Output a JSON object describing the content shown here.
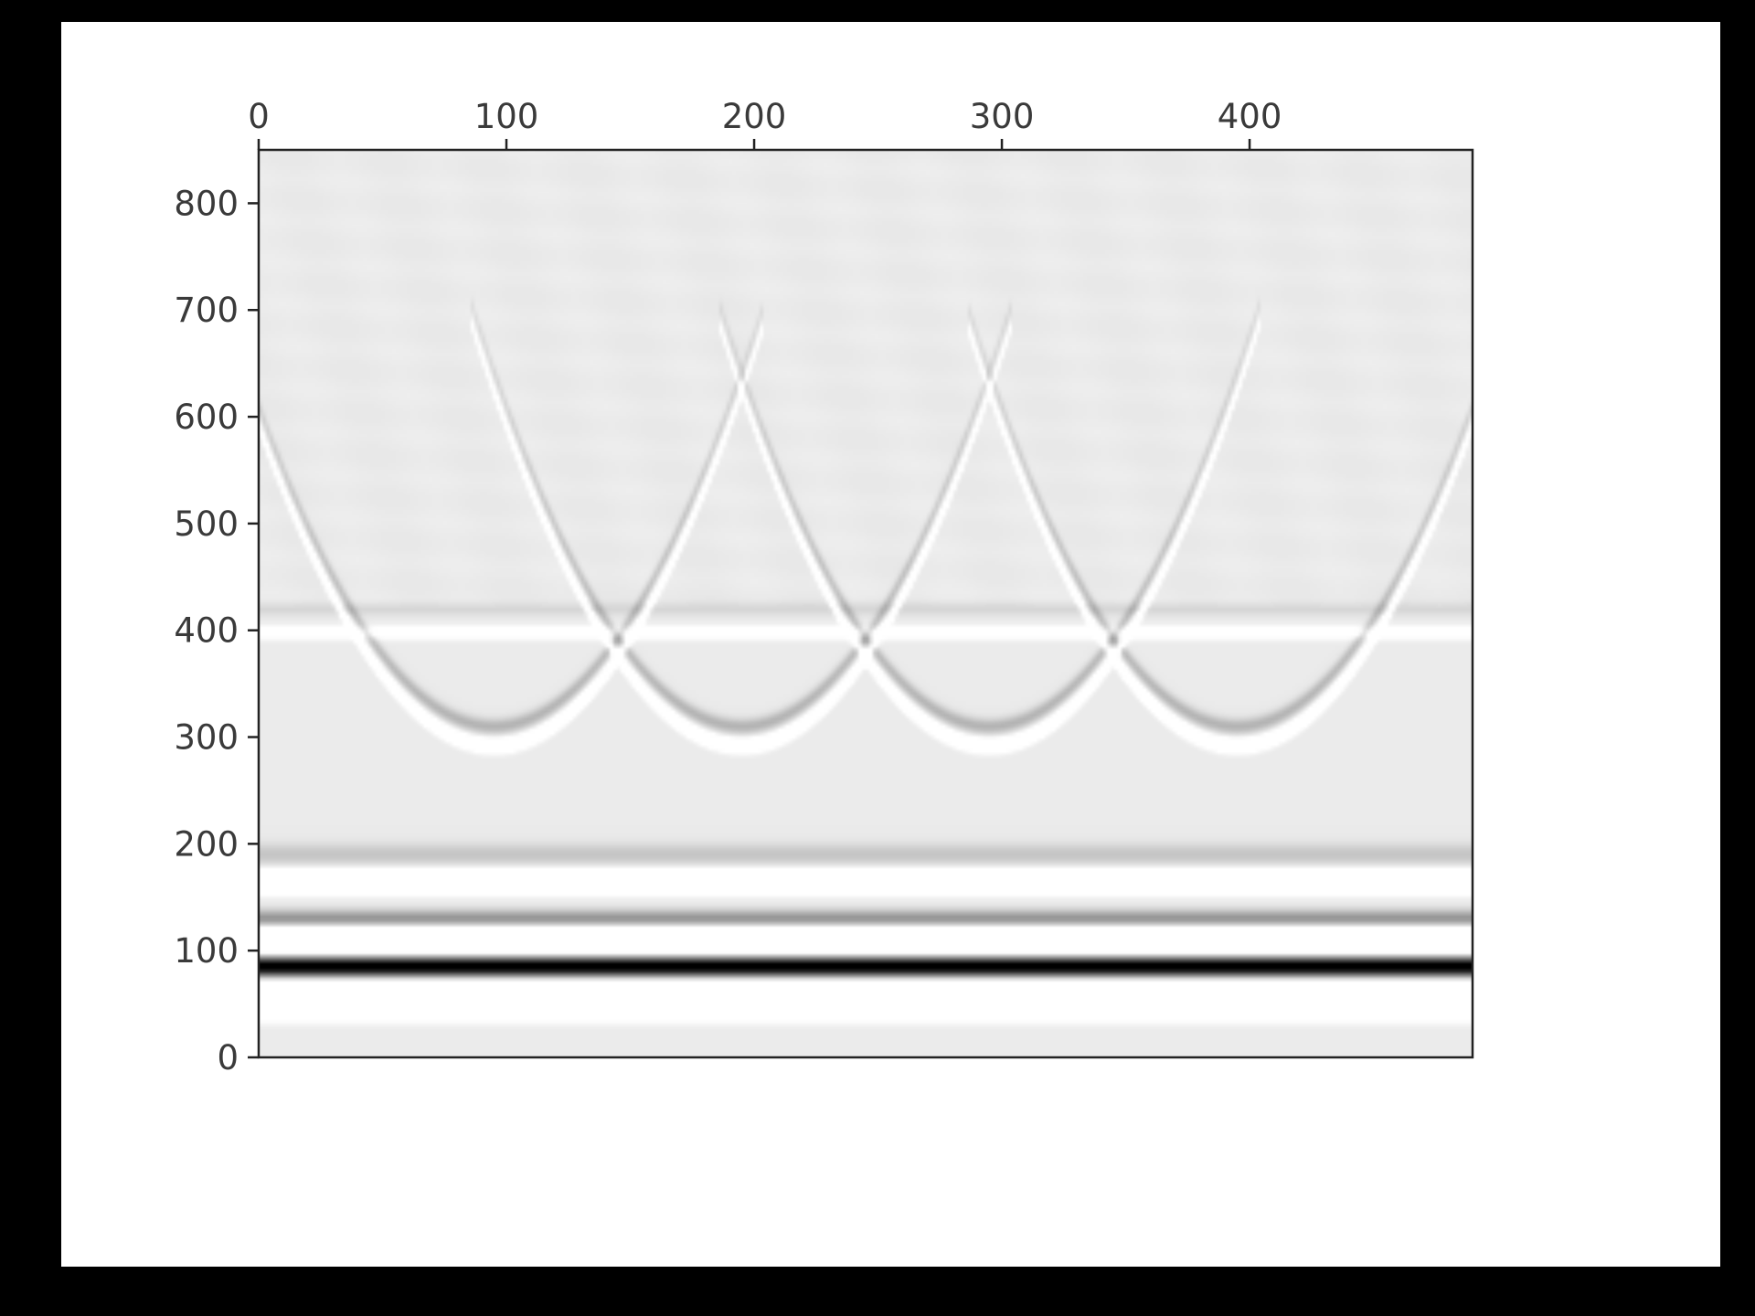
{
  "chart_data": {
    "type": "heatmap",
    "colormap": "gray",
    "xlim": [
      0,
      490
    ],
    "ylim": [
      0,
      850
    ],
    "x_ticks": [
      0,
      100,
      200,
      300,
      400
    ],
    "x_tick_labels": [
      "0",
      "100",
      "200",
      "300",
      "400"
    ],
    "y_ticks": [
      0,
      100,
      200,
      300,
      400,
      500,
      600,
      700,
      800
    ],
    "y_tick_labels": [
      "0",
      "100",
      "200",
      "300",
      "400",
      "500",
      "600",
      "700",
      "800"
    ],
    "x_axis_position": "top",
    "background_level": 0.92,
    "horizontal_bands": [
      {
        "y": 85,
        "halfwidth": 9,
        "amplitude": -1.0
      },
      {
        "y": 110,
        "halfwidth": 10,
        "amplitude": 0.9
      },
      {
        "y": 60,
        "halfwidth": 10,
        "amplitude": 0.9
      },
      {
        "y": 40,
        "halfwidth": 8,
        "amplitude": 0.15
      },
      {
        "y": 130,
        "halfwidth": 8,
        "amplitude": -0.35
      },
      {
        "y": 165,
        "halfwidth": 10,
        "amplitude": 0.4
      },
      {
        "y": 190,
        "halfwidth": 10,
        "amplitude": -0.15
      },
      {
        "y": 398,
        "halfwidth": 6,
        "amplitude": 0.15
      },
      {
        "y": 420,
        "halfwidth": 6,
        "amplitude": -0.08
      }
    ],
    "hyperbolas": [
      {
        "apex_x": 95,
        "apex_y": 300,
        "halfwidth": 95
      },
      {
        "apex_x": 195,
        "apex_y": 300,
        "halfwidth": 95
      },
      {
        "apex_x": 295,
        "apex_y": 300,
        "halfwidth": 95
      },
      {
        "apex_x": 395,
        "apex_y": 300,
        "halfwidth": 95
      }
    ]
  }
}
